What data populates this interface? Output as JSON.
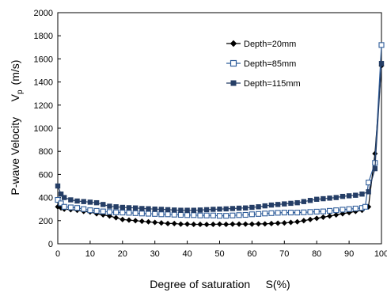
{
  "chart_data": {
    "type": "line",
    "xlabel": "Degree of saturation     S(%)",
    "ylabel": "P-wave Velocity     V",
    "ylabel_sub": "p",
    "ylabel_unit": "(m/s)",
    "xlim": [
      0,
      100
    ],
    "ylim": [
      0,
      2000
    ],
    "xticks": [
      0,
      10,
      20,
      30,
      40,
      50,
      60,
      70,
      80,
      90,
      100
    ],
    "yticks": [
      0,
      200,
      400,
      600,
      800,
      1000,
      1200,
      1400,
      1600,
      1800,
      2000
    ],
    "grid": false,
    "legend_position": "top-right",
    "series": [
      {
        "name": "Depth=20mm",
        "color": "#000000",
        "marker": "diamond",
        "x": [
          0,
          1,
          2,
          4,
          6,
          8,
          10,
          12,
          14,
          16,
          18,
          20,
          22,
          24,
          26,
          28,
          30,
          32,
          34,
          36,
          38,
          40,
          42,
          44,
          46,
          48,
          50,
          52,
          54,
          56,
          58,
          60,
          62,
          64,
          66,
          68,
          70,
          72,
          74,
          76,
          78,
          80,
          82,
          84,
          86,
          88,
          90,
          92,
          94,
          96,
          98,
          100
        ],
        "y": [
          320,
          310,
          300,
          295,
          290,
          280,
          275,
          260,
          250,
          240,
          225,
          210,
          205,
          200,
          195,
          190,
          185,
          180,
          175,
          175,
          170,
          170,
          168,
          168,
          167,
          168,
          170,
          168,
          170,
          170,
          170,
          170,
          172,
          172,
          175,
          178,
          180,
          185,
          190,
          200,
          210,
          220,
          230,
          240,
          250,
          260,
          270,
          280,
          290,
          320,
          780,
          1540
        ]
      },
      {
        "name": "Depth=85mm",
        "color": "#2f5d9a",
        "marker": "square-open",
        "x": [
          0,
          1,
          2,
          4,
          6,
          8,
          10,
          12,
          14,
          16,
          18,
          20,
          22,
          24,
          26,
          28,
          30,
          32,
          34,
          36,
          38,
          40,
          42,
          44,
          46,
          48,
          50,
          52,
          54,
          56,
          58,
          60,
          62,
          64,
          66,
          68,
          70,
          72,
          74,
          76,
          78,
          80,
          82,
          84,
          86,
          88,
          90,
          92,
          94,
          95,
          96,
          98,
          100
        ],
        "y": [
          380,
          350,
          320,
          315,
          310,
          300,
          290,
          285,
          280,
          275,
          272,
          270,
          268,
          265,
          262,
          260,
          258,
          255,
          255,
          252,
          250,
          248,
          248,
          245,
          245,
          245,
          242,
          242,
          245,
          248,
          250,
          255,
          258,
          262,
          265,
          268,
          270,
          270,
          270,
          272,
          275,
          278,
          280,
          285,
          290,
          295,
          300,
          305,
          310,
          320,
          530,
          700,
          1720
        ]
      },
      {
        "name": "Depth=115mm",
        "color": "#253e66",
        "marker": "square",
        "x": [
          0,
          1,
          2,
          4,
          6,
          8,
          10,
          12,
          14,
          16,
          18,
          20,
          22,
          24,
          26,
          28,
          30,
          32,
          34,
          36,
          38,
          40,
          42,
          44,
          46,
          48,
          50,
          52,
          54,
          56,
          58,
          60,
          62,
          64,
          66,
          68,
          70,
          72,
          74,
          76,
          78,
          80,
          82,
          84,
          86,
          88,
          90,
          92,
          94,
          96,
          98,
          100
        ],
        "y": [
          500,
          430,
          400,
          380,
          370,
          365,
          360,
          355,
          340,
          325,
          320,
          315,
          312,
          310,
          305,
          303,
          300,
          298,
          295,
          292,
          290,
          290,
          290,
          292,
          295,
          298,
          300,
          302,
          305,
          308,
          310,
          315,
          320,
          328,
          335,
          340,
          345,
          350,
          355,
          365,
          375,
          385,
          390,
          395,
          400,
          410,
          415,
          420,
          430,
          450,
          650,
          1560
        ]
      }
    ]
  }
}
